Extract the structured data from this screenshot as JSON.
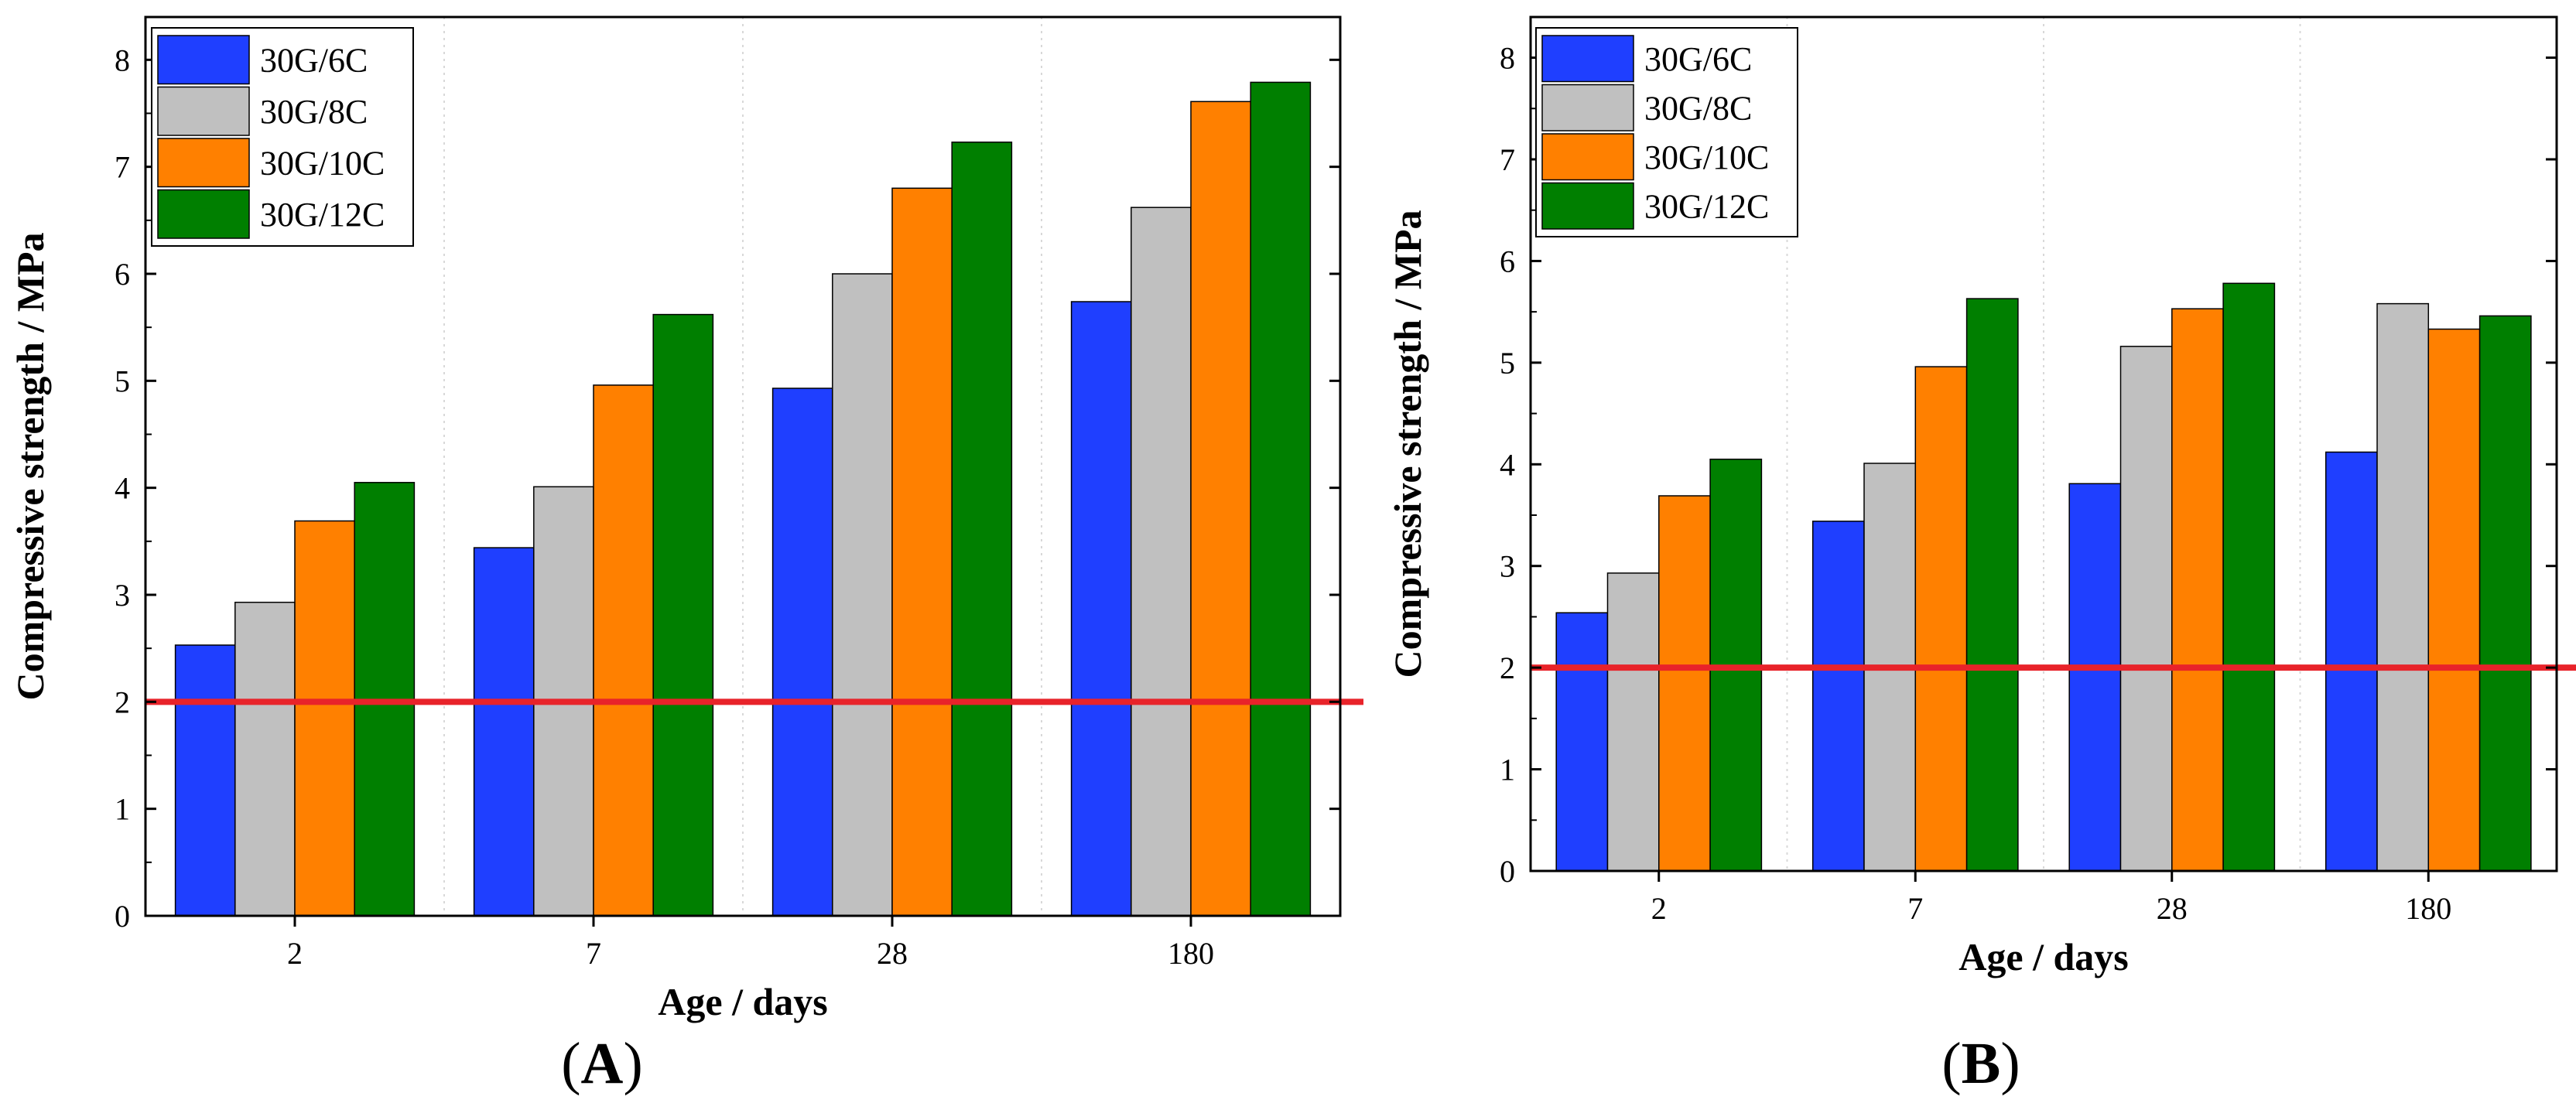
{
  "chart_data": [
    {
      "type": "bar",
      "panel_label": "A",
      "title": "",
      "xlabel": "Age / days",
      "ylabel": "Compressive strength / MPa",
      "categories": [
        "2",
        "7",
        "28",
        "180"
      ],
      "ylim": [
        0,
        8.4
      ],
      "yticks": [
        "0",
        "1",
        "2",
        "3",
        "4",
        "5",
        "6",
        "7",
        "8"
      ],
      "series": [
        {
          "name": "30G/6C",
          "color": "#1f3fff",
          "values": [
            2.53,
            3.44,
            4.93,
            5.74
          ]
        },
        {
          "name": "30G/8C",
          "color": "#c0c0c0",
          "values": [
            2.93,
            4.01,
            6.0,
            6.62
          ]
        },
        {
          "name": "30G/10C",
          "color": "#ff8000",
          "values": [
            3.69,
            4.96,
            6.8,
            7.61
          ]
        },
        {
          "name": "30G/12C",
          "color": "#007f00",
          "values": [
            4.05,
            5.62,
            7.23,
            7.79
          ]
        }
      ],
      "reference_line": {
        "value": 2.0,
        "color": "#e8232a"
      },
      "legend_position": "top-left"
    },
    {
      "type": "bar",
      "panel_label": "B",
      "title": "",
      "xlabel": "Age / days",
      "ylabel": "Compressive strength / MPa",
      "categories": [
        "2",
        "7",
        "28",
        "180"
      ],
      "ylim": [
        0,
        8.4
      ],
      "yticks": [
        "0",
        "1",
        "2",
        "3",
        "4",
        "5",
        "6",
        "7",
        "8"
      ],
      "series": [
        {
          "name": "30G/6C",
          "color": "#1f3fff",
          "values": [
            2.54,
            3.44,
            3.81,
            4.12
          ]
        },
        {
          "name": "30G/8C",
          "color": "#c0c0c0",
          "values": [
            2.93,
            4.01,
            5.16,
            5.58
          ]
        },
        {
          "name": "30G/10C",
          "color": "#ff8000",
          "values": [
            3.69,
            4.96,
            5.53,
            5.33
          ]
        },
        {
          "name": "30G/12C",
          "color": "#007f00",
          "values": [
            4.05,
            5.63,
            5.78,
            5.46
          ]
        }
      ],
      "reference_line": {
        "value": 2.0,
        "color": "#e8232a"
      },
      "legend_position": "top-left"
    }
  ]
}
